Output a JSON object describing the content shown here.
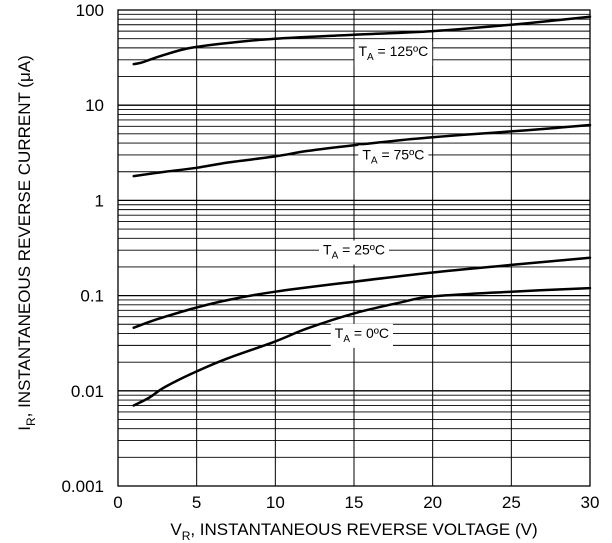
{
  "chart_data": {
    "type": "line",
    "title": "",
    "xlabel": {
      "main": "V",
      "sub": "R",
      "rest": ", INSTANTANEOUS REVERSE VOLTAGE (V)"
    },
    "ylabel": {
      "main": "I",
      "sub": "R",
      "rest": ", INSTANTANEOUS REVERSE CURRENT (μA)"
    },
    "xlim": [
      0,
      30
    ],
    "ylim": [
      0.001,
      100
    ],
    "y_scale": "log",
    "grid": true,
    "x_ticks": [
      0,
      5,
      10,
      15,
      20,
      25,
      30
    ],
    "x_tick_labels": [
      "0",
      "5",
      "10",
      "15",
      "20",
      "25",
      "30"
    ],
    "y_ticks": [
      0.001,
      0.01,
      0.1,
      1,
      10,
      100
    ],
    "y_tick_labels": [
      "0.001",
      "0.01",
      "0.1",
      "1",
      "10",
      "100"
    ],
    "series": [
      {
        "name": "T_A = 125ºC",
        "label": {
          "pre": "T",
          "sub": "A",
          "post": " = 125ºC"
        },
        "x": [
          1,
          1.5,
          2,
          3,
          4,
          5,
          7,
          10,
          15,
          20,
          25,
          30
        ],
        "y": [
          27,
          28,
          30,
          34,
          38,
          41,
          45,
          50,
          55,
          60,
          70,
          85
        ]
      },
      {
        "name": "T_A = 75ºC",
        "label": {
          "pre": "T",
          "sub": "A",
          "post": " = 75ºC"
        },
        "x": [
          1,
          3,
          5,
          7,
          10,
          12,
          15,
          18,
          20,
          22,
          25,
          28,
          30
        ],
        "y": [
          1.8,
          2.0,
          2.2,
          2.5,
          2.9,
          3.3,
          3.8,
          4.3,
          4.6,
          4.9,
          5.3,
          5.8,
          6.2
        ]
      },
      {
        "name": "T_A = 25ºC",
        "label": {
          "pre": "T",
          "sub": "A",
          "post": " = 25ºC"
        },
        "x": [
          1,
          2,
          3,
          5,
          7,
          10,
          15,
          20,
          25,
          30
        ],
        "y": [
          0.046,
          0.053,
          0.06,
          0.075,
          0.09,
          0.11,
          0.14,
          0.175,
          0.21,
          0.25
        ]
      },
      {
        "name": "T_A = 0ºC",
        "label": {
          "pre": "T",
          "sub": "A",
          "post": " = 0ºC"
        },
        "x": [
          1,
          2,
          3,
          5,
          7,
          10,
          12,
          15,
          18,
          20,
          25,
          30
        ],
        "y": [
          0.007,
          0.0085,
          0.011,
          0.016,
          0.022,
          0.033,
          0.045,
          0.065,
          0.085,
          0.098,
          0.11,
          0.12
        ]
      }
    ]
  }
}
